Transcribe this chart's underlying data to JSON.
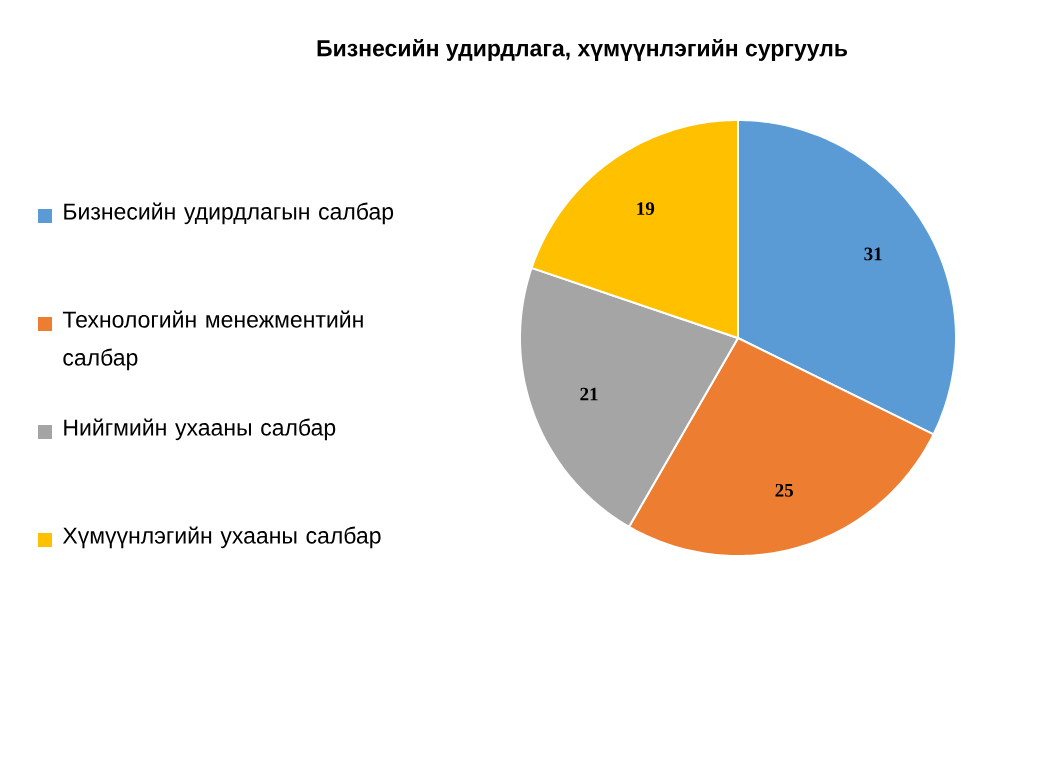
{
  "chart_data": {
    "type": "pie",
    "title": "Бизнесийн удирдлага, хүмүүнлэгийн сургууль",
    "categories": [
      "Бизнесийн  удирдлагын  салбар",
      "Технологийн  менежментийн салбар",
      "Нийгмийн  ухааны  салбар",
      "Хүмүүнлэгийн  ухааны  салбар"
    ],
    "values": [
      31,
      25,
      21,
      19
    ],
    "colors": [
      "#5b9bd5",
      "#ed7d31",
      "#a5a5a5",
      "#ffc000"
    ],
    "data_labels": true,
    "legend": "left"
  }
}
